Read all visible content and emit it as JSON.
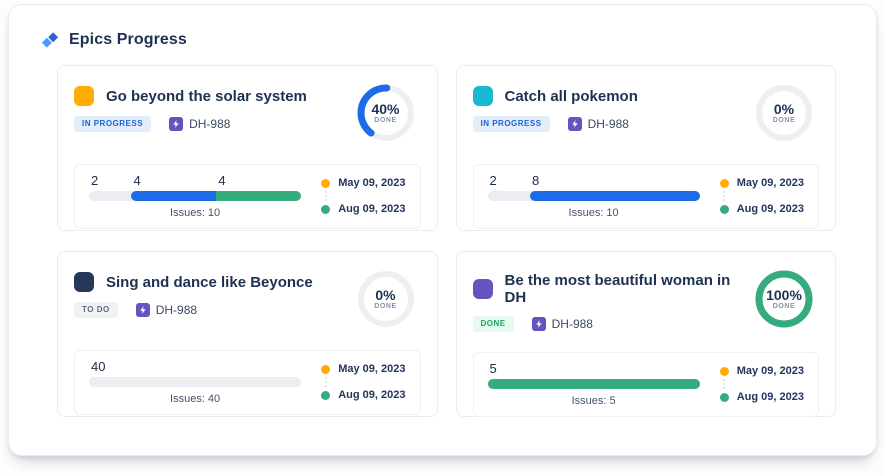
{
  "header": {
    "title": "Epics Progress"
  },
  "cards": [
    {
      "title": "Go beyond the solar system",
      "epic_color": "#ffab00",
      "status": {
        "label": "IN PROGRESS",
        "bg": "#e4edfc",
        "fg": "#1b63d8"
      },
      "issue_key": "DH-988",
      "donut": {
        "percent": 40,
        "label": "40%",
        "sub": "DONE",
        "color": "#1b6ce6"
      },
      "bar": {
        "issues": "Issues: 10",
        "segments": [
          {
            "label": "2",
            "pct": 20,
            "fill": null
          },
          {
            "label": "4",
            "pct": 40,
            "fill": "#1b6ce6"
          },
          {
            "label": "4",
            "pct": 40,
            "fill": "#36ab7e"
          }
        ]
      },
      "dates": [
        {
          "label": "May 09, 2023",
          "dot": "#ffab00"
        },
        {
          "label": "Aug 09, 2023",
          "dot": "#36ab7e"
        }
      ]
    },
    {
      "title": "Catch all pokemon",
      "epic_color": "#1ab8d2",
      "status": {
        "label": "IN PROGRESS",
        "bg": "#e4edfc",
        "fg": "#1b63d8"
      },
      "issue_key": "DH-988",
      "donut": {
        "percent": 0,
        "label": "0%",
        "sub": "DONE",
        "color": "#1b6ce6"
      },
      "bar": {
        "issues": "Issues: 10",
        "segments": [
          {
            "label": "2",
            "pct": 20,
            "fill": null
          },
          {
            "label": "8",
            "pct": 80,
            "fill": "#1b6ce6"
          }
        ]
      },
      "dates": [
        {
          "label": "May 09, 2023",
          "dot": "#ffab00"
        },
        {
          "label": "Aug 09, 2023",
          "dot": "#36ab7e"
        }
      ]
    },
    {
      "title": "Sing and dance like Beyonce",
      "epic_color": "#253858",
      "status": {
        "label": "TO DO",
        "bg": "#f1f2f4",
        "fg": "#5c6b84"
      },
      "issue_key": "DH-988",
      "donut": {
        "percent": 0,
        "label": "0%",
        "sub": "DONE",
        "color": "#1b6ce6"
      },
      "bar": {
        "issues": "Issues: 40",
        "segments": [
          {
            "label": "40",
            "pct": 100,
            "fill": null
          }
        ]
      },
      "dates": [
        {
          "label": "May 09, 2023",
          "dot": "#ffab00"
        },
        {
          "label": "Aug 09, 2023",
          "dot": "#36ab7e"
        }
      ]
    },
    {
      "title": "Be the most beautiful woman in DH",
      "epic_color": "#6554c0",
      "status": {
        "label": "DONE",
        "bg": "#e3fcef",
        "fg": "#239e68"
      },
      "issue_key": "DH-988",
      "donut": {
        "percent": 100,
        "label": "100%",
        "sub": "DONE",
        "color": "#36ab7e"
      },
      "bar": {
        "issues": "Issues: 5",
        "segments": [
          {
            "label": "5",
            "pct": 100,
            "fill": "#36ab7e"
          }
        ]
      },
      "dates": [
        {
          "label": "May 09, 2023",
          "dot": "#ffab00"
        },
        {
          "label": "Aug 09, 2023",
          "dot": "#36ab7e"
        }
      ]
    }
  ]
}
